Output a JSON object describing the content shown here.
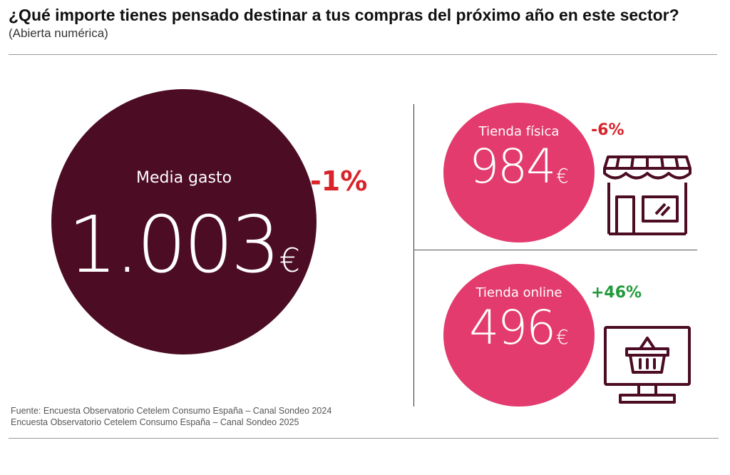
{
  "header": {
    "title": "¿Qué importe tienes pensado destinar a tus compras del próximo año en este sector?",
    "subtitle": "(Abierta numérica)"
  },
  "chart_data": {
    "type": "other",
    "currency_symbol": "€",
    "main": {
      "label": "Media gasto",
      "value_text": "1.003",
      "value": 1003,
      "change_text": "-1%",
      "change": -1
    },
    "channels": [
      {
        "label": "Tienda física",
        "value_text": "984",
        "value": 984,
        "change_text": "-6%",
        "change": -6,
        "icon": "storefront-icon"
      },
      {
        "label": "Tienda online",
        "value_text": "496",
        "value": 496,
        "change_text": "+46%",
        "change": 46,
        "icon": "monitor-basket-icon"
      }
    ]
  },
  "source": {
    "line1": "Fuente: Encuesta Observatorio Cetelem Consumo España – Canal Sondeo 2024",
    "line2": "Encuesta Observatorio Cetelem Consumo España – Canal Sondeo 2025"
  },
  "colors": {
    "main_circle": "#4c0c24",
    "channel_circle": "#e33b6e",
    "negative": "#d8232a",
    "positive": "#1f9a3a",
    "icon_stroke": "#4c0c24"
  }
}
